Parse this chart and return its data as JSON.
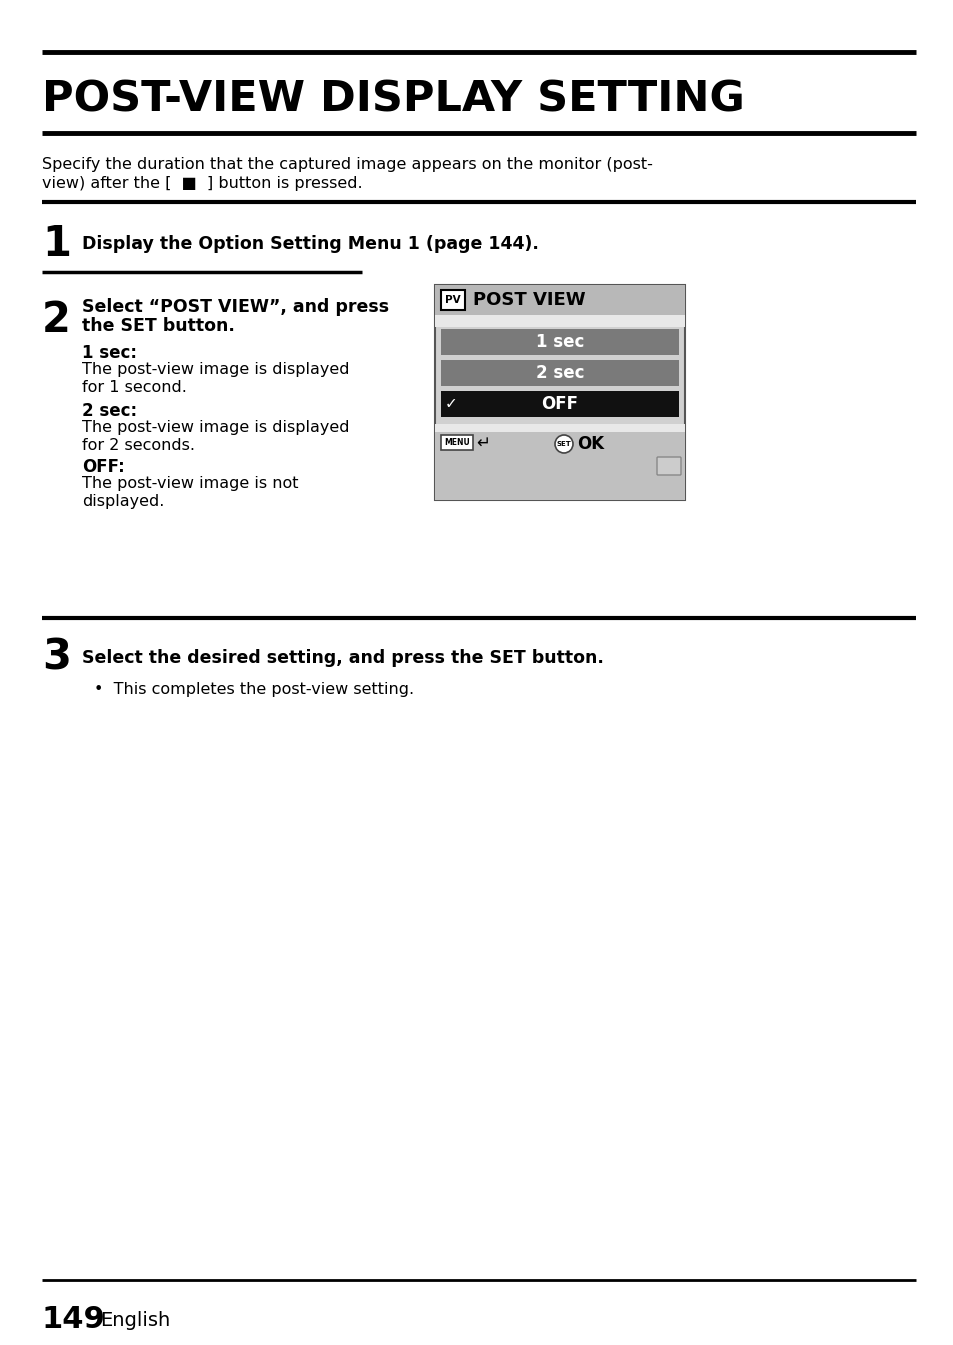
{
  "title": "POST-VIEW DISPLAY SETTING",
  "step1_num": "1",
  "step1_text": "Display the Option Setting Menu 1 (page 144).",
  "step2_num": "2",
  "step2_header_line1": "Select “POST VIEW”, and press",
  "step2_header_line2": "the SET button.",
  "step2_1sec_bold": "1 sec:",
  "step2_1sec_text1": "The post-view image is displayed",
  "step2_1sec_text2": "for 1 second.",
  "step2_2sec_bold": "2 sec:",
  "step2_2sec_text1": "The post-view image is displayed",
  "step2_2sec_text2": "for 2 seconds.",
  "step2_off_bold": "OFF:",
  "step2_off_text1": "The post-view image is not",
  "step2_off_text2": "displayed.",
  "step3_num": "3",
  "step3_text": "Select the desired setting, and press the SET button.",
  "step3_bullet": "This completes the post-view setting.",
  "footer_num": "149",
  "footer_text": "English",
  "intro_line1": "Specify the duration that the captured image appears on the monitor (post-",
  "intro_line2": "view) after the [  ■  ] button is pressed.",
  "menu_title": "POST VIEW",
  "menu_items": [
    "1 sec",
    "2 sec",
    "OFF"
  ],
  "menu_item_colors": [
    "#7a7a7a",
    "#7a7a7a",
    "#111111"
  ],
  "menu_selected": 2,
  "menu_bg": "#d0d0d0",
  "menu_header_bg": "#b8b8b8",
  "menu_light_bg": "#e8e8e8",
  "menu_footer_bg": "#c0c0c0",
  "page_bg": "#ffffff",
  "text_color": "#000000",
  "white": "#ffffff",
  "line_color": "#000000"
}
